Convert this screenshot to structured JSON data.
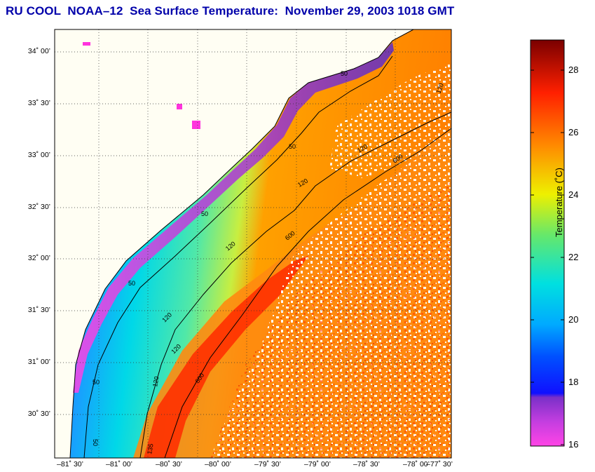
{
  "title": "RU COOL  NOAA–12  Sea Surface Temperature:  November 29, 2003 1018 GMT",
  "map": {
    "latitude_ticks": [
      "34˚ 00’",
      "33˚ 30’",
      "33˚ 00’",
      "32˚ 30’",
      "32˚ 00’",
      "31˚ 30’",
      "31˚ 00’",
      "30˚ 30’"
    ],
    "longitude_ticks": [
      "–81˚ 30’",
      "–81˚ 00’",
      "–80˚ 30’",
      "–80˚ 00’",
      "–79˚ 30’",
      "–79˚ 00’",
      "–78˚ 30’",
      "–78˚ 00’",
      "–77˚ 30’"
    ],
    "isobath_labels": [
      "50",
      "50",
      "50",
      "50",
      "50",
      "50",
      "120",
      "120",
      "120",
      "120",
      "120",
      "120",
      "120",
      "600",
      "600",
      "600",
      "135"
    ],
    "colors": {
      "land": "#fffef3",
      "frame": "#000000",
      "grid": "#000000"
    }
  },
  "colorbar": {
    "label": "Temperature (˚C)",
    "ticks": [
      "28",
      "26",
      "24",
      "22",
      "20",
      "18",
      "16"
    ],
    "range": [
      16,
      29
    ],
    "colors": [
      "#ff33dd",
      "#7a30c8",
      "#1010ff",
      "#00aaff",
      "#00e0e0",
      "#66e86a",
      "#eef000",
      "#ff8a00",
      "#ff2000",
      "#7a0000"
    ]
  }
}
